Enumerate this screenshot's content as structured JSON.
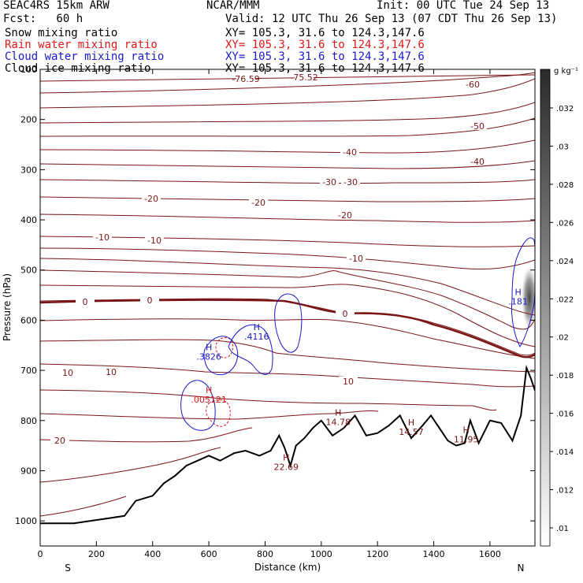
{
  "header": {
    "model": "SEAC4RS 15km ARW",
    "org": "NCAR/MMM",
    "init": "Init: 00 UTC Tue 24 Sep 13",
    "fcst": "Fcst:   60 h",
    "valid": "Valid: 12 UTC Thu 26 Sep 13 (07 CDT Thu 26 Sep 13)",
    "fields": [
      {
        "label": "Snow mixing ratio",
        "xy": "XY= 105.3, 31.6 to 124.3,147.6",
        "color": "#000000"
      },
      {
        "label": "Rain water mixing ratio",
        "xy": "XY= 105.3, 31.6 to 124.3,147.6",
        "color": "#e01818"
      },
      {
        "label": "Cloud water mixing ratio",
        "xy": "XY= 105.3, 31.6 to 124.3,147.6",
        "color": "#1a1acc"
      },
      {
        "label": "Cloud ice mixing ratio",
        "xy": "XY= 105.3, 31.6 to 124.3,147.6",
        "color": "#000000"
      }
    ]
  },
  "chart_data": {
    "type": "cross-section",
    "xlabel": "Distance (km)",
    "ylabel": "Pressure (hPa)",
    "xlim": [
      0,
      1760
    ],
    "ylim": [
      1050,
      100
    ],
    "x_ticks": [
      0,
      200,
      400,
      600,
      800,
      1000,
      1200,
      1400,
      1600
    ],
    "y_ticks": [
      100,
      200,
      300,
      400,
      500,
      600,
      700,
      800,
      900,
      1000
    ],
    "x_end_labels": {
      "left": "S",
      "right": "N"
    },
    "colorbar": {
      "unit": "g kg⁻¹",
      "ticks": [
        ".01",
        ".012",
        ".014",
        ".016",
        ".018",
        ".02",
        ".022",
        ".024",
        ".026",
        ".028",
        ".03",
        ".032"
      ]
    },
    "temperature_contour_labels": [
      "-76.59",
      "-75.52",
      "-60",
      "-50",
      "-40",
      "-40",
      "-30",
      "-30",
      "-20",
      "-20",
      "-20",
      "-10",
      "-10",
      "-10",
      "0",
      "0",
      "0",
      "10",
      "10",
      "10",
      "20"
    ],
    "highs": [
      {
        "distance": 875,
        "pressure": 880,
        "label": "H",
        "value": "22.69",
        "color": "#7a1414"
      },
      {
        "distance": 1060,
        "pressure": 790,
        "label": "H",
        "value": "14.78",
        "color": "#7a1414"
      },
      {
        "distance": 1320,
        "pressure": 810,
        "label": "H",
        "value": "14.57",
        "color": "#7a1414"
      },
      {
        "distance": 1515,
        "pressure": 825,
        "label": "H",
        "value": "11.95",
        "color": "#7a1414"
      },
      {
        "distance": 600,
        "pressure": 745,
        "label": "H",
        "value": ".005121",
        "color": "#e01818"
      },
      {
        "distance": 600,
        "pressure": 660,
        "label": "H",
        "value": ".3826",
        "color": "#1a1acc"
      },
      {
        "distance": 770,
        "pressure": 620,
        "label": "H",
        "value": ".4116",
        "color": "#1a1acc"
      },
      {
        "distance": 1700,
        "pressure": 550,
        "label": "H",
        "value": ".181",
        "color": "#1a1acc"
      }
    ],
    "terrain": [
      [
        0,
        1005
      ],
      [
        120,
        1005
      ],
      [
        240,
        995
      ],
      [
        300,
        990
      ],
      [
        340,
        960
      ],
      [
        400,
        950
      ],
      [
        440,
        925
      ],
      [
        480,
        910
      ],
      [
        520,
        890
      ],
      [
        560,
        880
      ],
      [
        600,
        870
      ],
      [
        640,
        880
      ],
      [
        690,
        865
      ],
      [
        730,
        860
      ],
      [
        780,
        870
      ],
      [
        820,
        860
      ],
      [
        850,
        830
      ],
      [
        870,
        855
      ],
      [
        890,
        890
      ],
      [
        910,
        850
      ],
      [
        940,
        835
      ],
      [
        970,
        815
      ],
      [
        1000,
        800
      ],
      [
        1040,
        830
      ],
      [
        1080,
        815
      ],
      [
        1120,
        790
      ],
      [
        1160,
        830
      ],
      [
        1200,
        825
      ],
      [
        1240,
        810
      ],
      [
        1280,
        790
      ],
      [
        1320,
        835
      ],
      [
        1360,
        810
      ],
      [
        1390,
        790
      ],
      [
        1420,
        815
      ],
      [
        1450,
        840
      ],
      [
        1480,
        850
      ],
      [
        1510,
        845
      ],
      [
        1530,
        800
      ],
      [
        1560,
        845
      ],
      [
        1600,
        800
      ],
      [
        1640,
        805
      ],
      [
        1680,
        840
      ],
      [
        1710,
        790
      ],
      [
        1730,
        695
      ],
      [
        1745,
        715
      ],
      [
        1760,
        740
      ]
    ]
  }
}
